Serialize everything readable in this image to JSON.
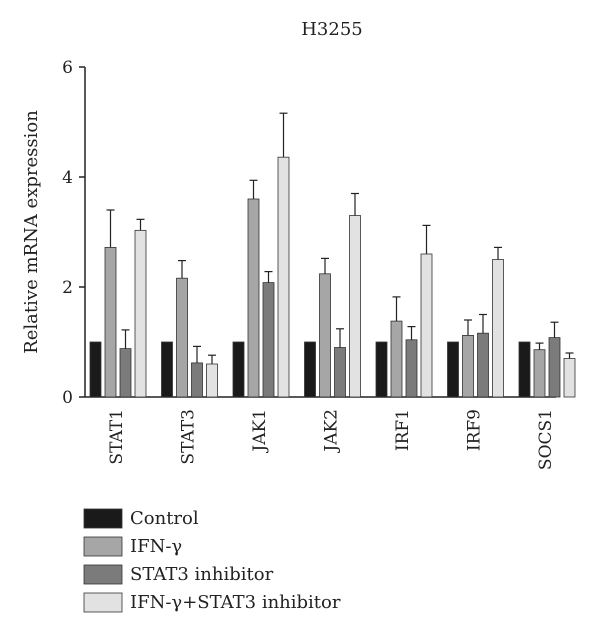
{
  "chart_data": {
    "type": "bar",
    "title": "H3255",
    "xlabel": "",
    "ylabel": "Relative mRNA expression",
    "ylim": [
      0,
      6
    ],
    "yticks": [
      0,
      2,
      4,
      6
    ],
    "categories": [
      "STAT1",
      "STAT3",
      "JAK1",
      "JAK2",
      "IRF1",
      "IRF9",
      "SOCS1"
    ],
    "error_bars": "upper only",
    "legend_position": "bottom-left",
    "series": [
      {
        "name": "Control",
        "color": "#1a1a1a",
        "values": [
          1.0,
          1.0,
          1.0,
          1.0,
          1.0,
          1.0,
          1.0
        ],
        "errors": [
          0,
          0,
          0,
          0,
          0,
          0,
          0
        ]
      },
      {
        "name": "IFN-γ",
        "color": "#a6a6a6",
        "values": [
          2.72,
          2.16,
          3.6,
          2.24,
          1.38,
          1.12,
          0.86
        ],
        "errors": [
          0.68,
          0.32,
          0.34,
          0.28,
          0.44,
          0.28,
          0.12
        ]
      },
      {
        "name": "STAT3 inhibitor",
        "color": "#7b7b7b",
        "values": [
          0.88,
          0.62,
          2.08,
          0.9,
          1.04,
          1.16,
          1.08
        ],
        "errors": [
          0.34,
          0.3,
          0.2,
          0.34,
          0.24,
          0.34,
          0.28
        ]
      },
      {
        "name": "IFN-γ+STAT3 inhibitor",
        "color": "#e2e2e2",
        "values": [
          3.03,
          0.6,
          4.36,
          3.3,
          2.6,
          2.5,
          0.7
        ],
        "errors": [
          0.2,
          0.16,
          0.8,
          0.4,
          0.52,
          0.22,
          0.1
        ]
      }
    ]
  }
}
